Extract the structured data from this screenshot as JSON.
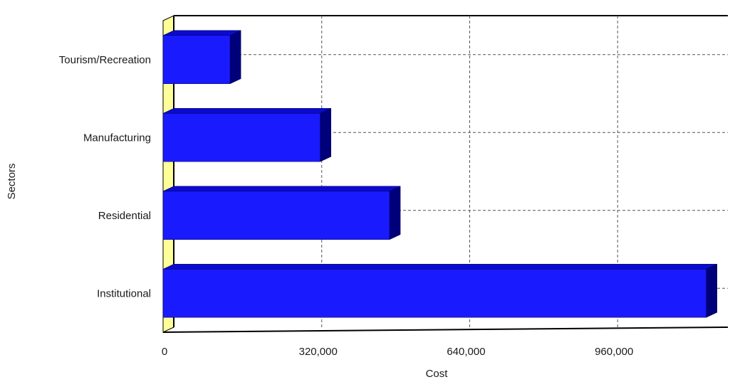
{
  "chart_data": {
    "type": "bar",
    "orientation": "horizontal",
    "categories": [
      "Tourism/Recreation",
      "Manufacturing",
      "Residential",
      "Institutional"
    ],
    "values": [
      145000,
      340000,
      490000,
      1175000
    ],
    "xlabel": "Cost",
    "ylabel": "Sectors",
    "xlim": [
      0,
      1200000
    ],
    "x_ticks": [
      0,
      320000,
      640000,
      960000
    ],
    "x_tick_labels": [
      "0",
      "320,000",
      "640,000",
      "960,000"
    ],
    "grid": true,
    "legend": "none",
    "colors": {
      "bar": "#1a1aff",
      "bar_top": "#0a0ad0",
      "bar_side": "#00007a",
      "wall": "#ffff99",
      "grid": "#555555"
    }
  }
}
